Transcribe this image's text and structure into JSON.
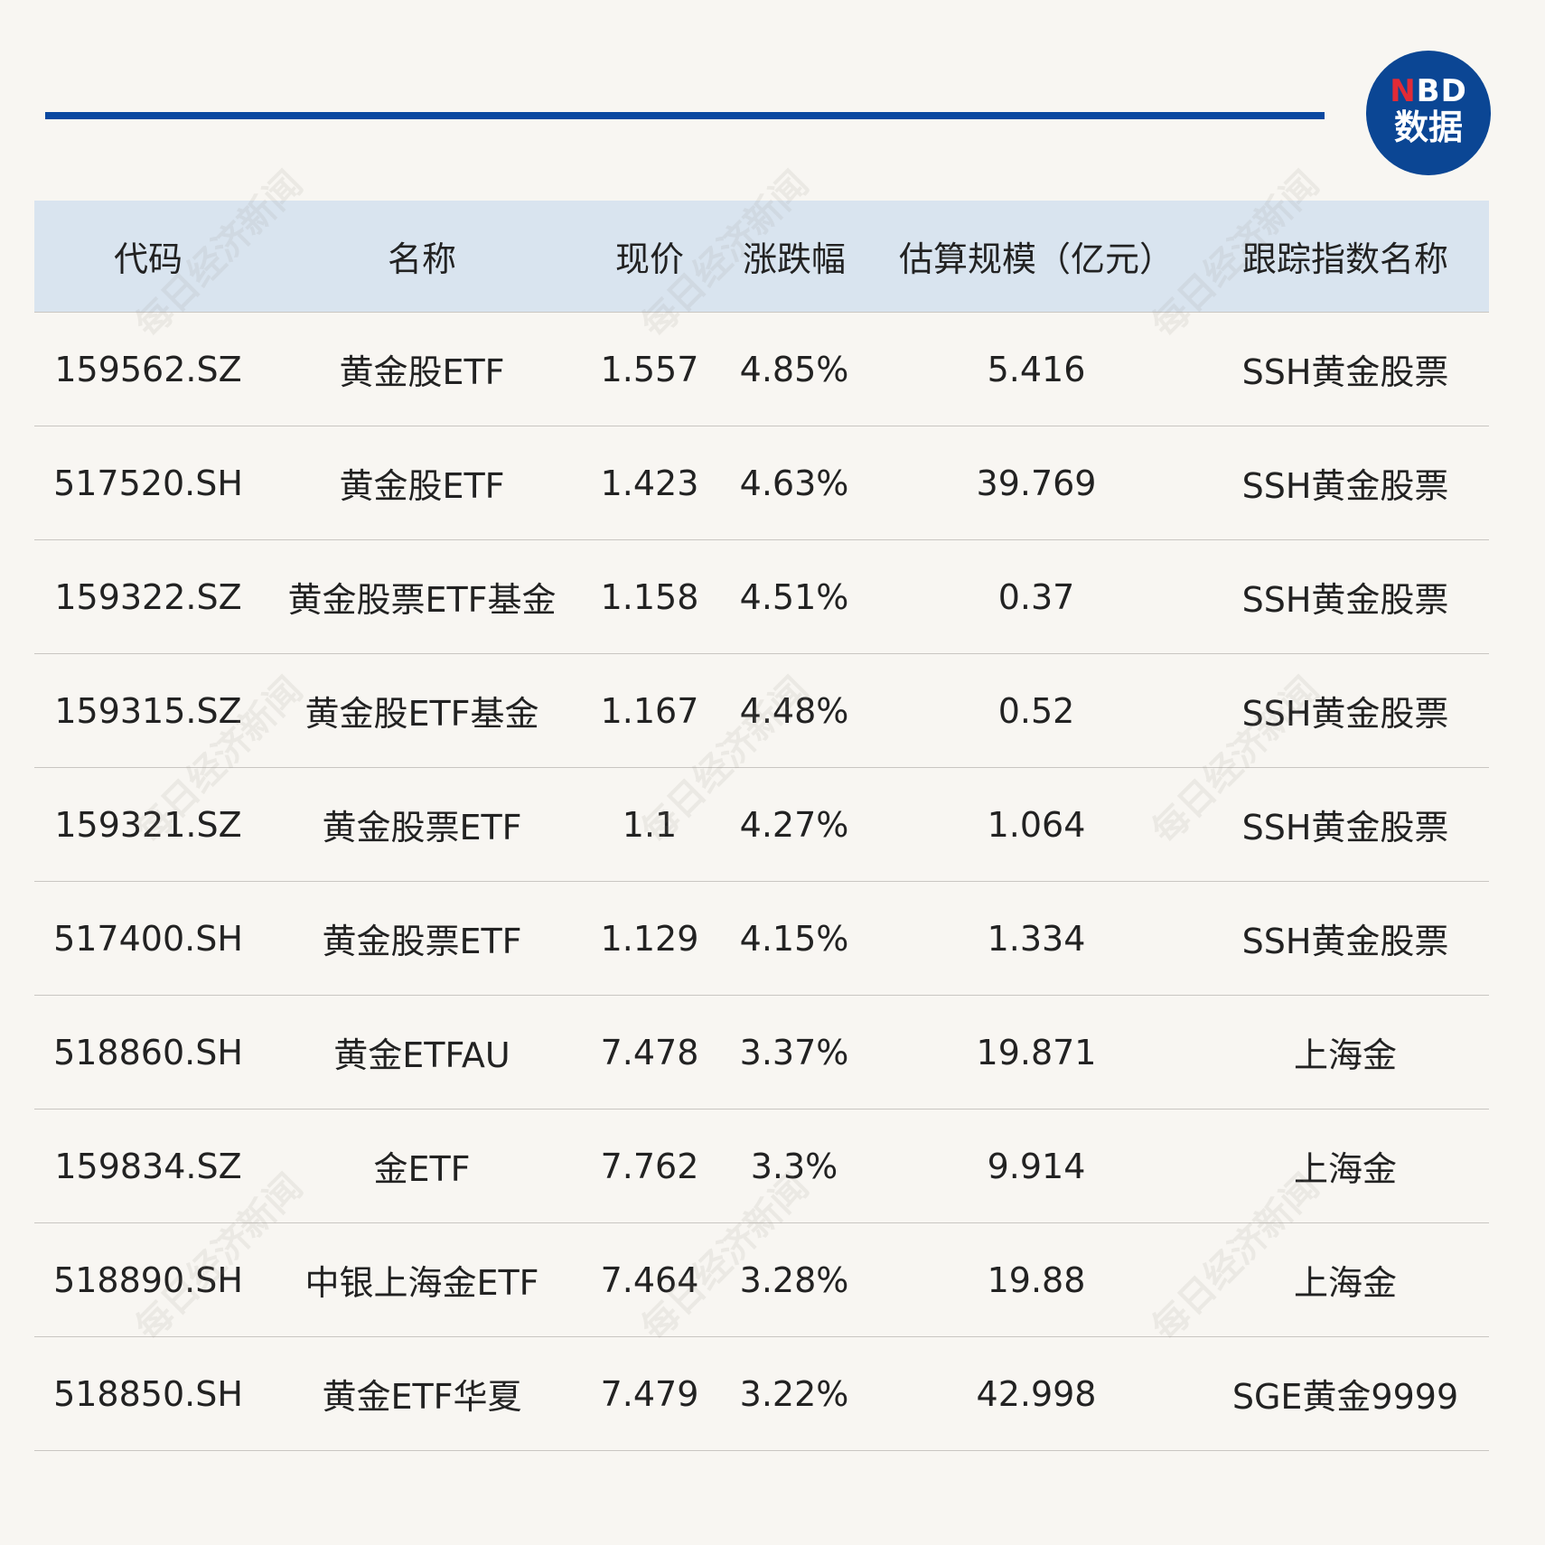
{
  "logo": {
    "n": "N",
    "bd": "BD",
    "sub": "数据"
  },
  "watermark": "每日经济新闻",
  "colors": {
    "accent": "#0a48a0",
    "header_bg": "#d9e4ef",
    "logo_red": "#e22b36"
  },
  "table": {
    "headers": [
      "代码",
      "名称",
      "现价",
      "涨跌幅",
      "估算规模（亿元）",
      "跟踪指数名称"
    ],
    "rows": [
      [
        "159562.SZ",
        "黄金股ETF",
        "1.557",
        "4.85%",
        "5.416",
        "SSH黄金股票"
      ],
      [
        "517520.SH",
        "黄金股ETF",
        "1.423",
        "4.63%",
        "39.769",
        "SSH黄金股票"
      ],
      [
        "159322.SZ",
        "黄金股票ETF基金",
        "1.158",
        "4.51%",
        "0.37",
        "SSH黄金股票"
      ],
      [
        "159315.SZ",
        "黄金股ETF基金",
        "1.167",
        "4.48%",
        "0.52",
        "SSH黄金股票"
      ],
      [
        "159321.SZ",
        "黄金股票ETF",
        "1.1",
        "4.27%",
        "1.064",
        "SSH黄金股票"
      ],
      [
        "517400.SH",
        "黄金股票ETF",
        "1.129",
        "4.15%",
        "1.334",
        "SSH黄金股票"
      ],
      [
        "518860.SH",
        "黄金ETFAU",
        "7.478",
        "3.37%",
        "19.871",
        "上海金"
      ],
      [
        "159834.SZ",
        "金ETF",
        "7.762",
        "3.3%",
        "9.914",
        "上海金"
      ],
      [
        "518890.SH",
        "中银上海金ETF",
        "7.464",
        "3.28%",
        "19.88",
        "上海金"
      ],
      [
        "518850.SH",
        "黄金ETF华夏",
        "7.479",
        "3.22%",
        "42.998",
        "SGE黄金9999"
      ]
    ]
  }
}
